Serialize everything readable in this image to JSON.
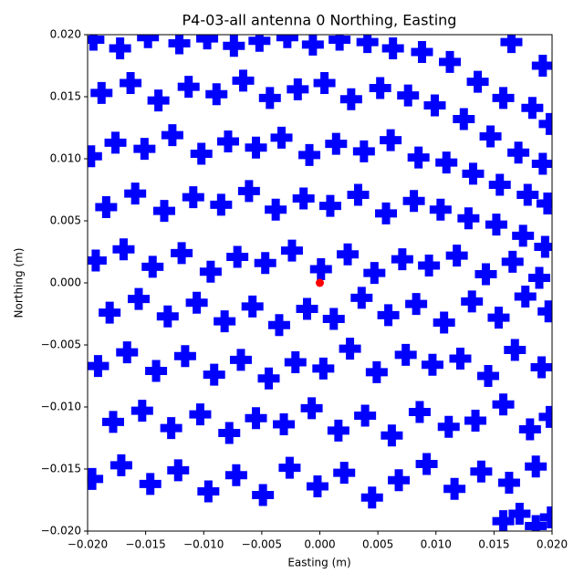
{
  "chart_data": {
    "type": "scatter",
    "title": "P4-03-all antenna 0 Northing, Easting",
    "x_label": "Easting (m)",
    "y_label": "Northing (m)",
    "xlim": [
      -0.02,
      0.02
    ],
    "ylim": [
      -0.02,
      0.02
    ],
    "xticks": [
      {
        "value": -0.02,
        "label": "−0.020"
      },
      {
        "value": -0.015,
        "label": "−0.015"
      },
      {
        "value": -0.01,
        "label": "−0.010"
      },
      {
        "value": -0.005,
        "label": "−0.005"
      },
      {
        "value": 0,
        "label": "0.000"
      },
      {
        "value": 0.005,
        "label": "0.005"
      },
      {
        "value": 0.01,
        "label": "0.010"
      },
      {
        "value": 0.015,
        "label": "0.015"
      },
      {
        "value": 0.02,
        "label": "0.020"
      }
    ],
    "yticks": [
      {
        "value": -0.02,
        "label": "−0.020"
      },
      {
        "value": -0.015,
        "label": "−0.015"
      },
      {
        "value": -0.01,
        "label": "−0.010"
      },
      {
        "value": -0.005,
        "label": "−0.005"
      },
      {
        "value": 0,
        "label": "0.000"
      },
      {
        "value": 0.005,
        "label": "0.005"
      },
      {
        "value": 0.01,
        "label": "0.010"
      },
      {
        "value": 0.015,
        "label": "0.015"
      },
      {
        "value": 0.02,
        "label": "0.020"
      }
    ],
    "series": [
      {
        "color": "#0000ff",
        "marker": "plus",
        "x": [
          -0.0195,
          -0.0172,
          -0.0148,
          -0.0121,
          -0.0097,
          -0.0074,
          -0.0052,
          -0.0028,
          -0.0006,
          0.0017,
          0.0041,
          0.0063,
          0.0088,
          0.0112,
          0.0136,
          0.0158,
          0.0183,
          0.0198,
          -0.0188,
          -0.0163,
          -0.0139,
          -0.0113,
          -0.0089,
          -0.0066,
          -0.0043,
          -0.0019,
          0.0004,
          0.0027,
          0.0052,
          0.0076,
          0.0099,
          0.0124,
          0.0147,
          0.0171,
          0.0192,
          -0.0197,
          -0.0176,
          -0.0151,
          -0.0127,
          -0.0102,
          -0.0079,
          -0.0055,
          -0.0033,
          -0.0009,
          0.0014,
          0.0038,
          0.0061,
          0.0085,
          0.0109,
          0.0132,
          0.0155,
          0.0179,
          0.0196,
          -0.0184,
          -0.0159,
          -0.0134,
          -0.0109,
          -0.0085,
          -0.0061,
          -0.0038,
          -0.0014,
          0.0009,
          0.0033,
          0.0057,
          0.0081,
          0.0104,
          0.0128,
          0.0152,
          0.0175,
          0.0194,
          -0.0193,
          -0.0169,
          -0.0144,
          -0.0119,
          -0.0094,
          -0.0071,
          -0.0047,
          -0.0024,
          0.0001,
          0.0024,
          0.0047,
          0.0071,
          0.0094,
          0.0118,
          0.0143,
          0.0166,
          0.0189,
          -0.0181,
          -0.0156,
          -0.0131,
          -0.0106,
          -0.0082,
          -0.0058,
          -0.0035,
          -0.0011,
          0.0012,
          0.0036,
          0.0059,
          0.0083,
          0.0107,
          0.0131,
          0.0154,
          0.0177,
          0.0197,
          -0.0191,
          -0.0166,
          -0.0141,
          -0.0116,
          -0.0091,
          -0.0068,
          -0.0044,
          -0.0021,
          0.0003,
          0.0026,
          0.0049,
          0.0074,
          0.0097,
          0.0121,
          0.0145,
          0.0168,
          0.0191,
          -0.0178,
          -0.0153,
          -0.0128,
          -0.0103,
          -0.0078,
          -0.0055,
          -0.0031,
          -0.0007,
          0.0016,
          0.0039,
          0.0062,
          0.0086,
          0.0111,
          0.0134,
          0.0158,
          0.0181,
          0.0198,
          -0.0196,
          -0.0171,
          -0.0146,
          -0.0122,
          -0.0096,
          -0.0072,
          -0.0049,
          -0.0026,
          -0.0002,
          0.0021,
          0.0045,
          0.0068,
          0.0092,
          0.0116,
          0.0139,
          0.0163,
          0.0186,
          0.0158,
          0.0172,
          0.0186,
          0.0199,
          0.0165,
          0.0192
        ],
        "y": [
          0.0196,
          0.0189,
          0.0198,
          0.0193,
          0.0197,
          0.0191,
          0.0195,
          0.0198,
          0.0192,
          0.0196,
          0.0194,
          0.0189,
          0.0186,
          0.0178,
          0.0162,
          0.0149,
          0.0141,
          0.0128,
          0.0153,
          0.0161,
          0.0147,
          0.0158,
          0.0152,
          0.0163,
          0.0149,
          0.0156,
          0.0161,
          0.0148,
          0.0157,
          0.0151,
          0.0143,
          0.0132,
          0.0118,
          0.0105,
          0.0096,
          0.0102,
          0.0113,
          0.0108,
          0.0119,
          0.0104,
          0.0114,
          0.0109,
          0.0117,
          0.0103,
          0.0112,
          0.0106,
          0.0115,
          0.0101,
          0.0097,
          0.0088,
          0.0079,
          0.0071,
          0.0064,
          0.0061,
          0.0072,
          0.0058,
          0.0069,
          0.0063,
          0.0074,
          0.0059,
          0.0068,
          0.0062,
          0.0071,
          0.0056,
          0.0066,
          0.0059,
          0.0052,
          0.0047,
          0.0038,
          0.0029,
          0.0018,
          0.0027,
          0.0013,
          0.0024,
          0.0009,
          0.0021,
          0.0016,
          0.0026,
          0.0011,
          0.0023,
          0.0008,
          0.0019,
          0.0014,
          0.0022,
          0.0007,
          0.0017,
          0.0004,
          -0.0024,
          -0.0013,
          -0.0027,
          -0.0016,
          -0.0031,
          -0.0019,
          -0.0034,
          -0.0021,
          -0.0029,
          -0.0012,
          -0.0026,
          -0.0017,
          -0.0032,
          -0.0015,
          -0.0028,
          -0.0011,
          -0.0023,
          -0.0067,
          -0.0056,
          -0.0071,
          -0.0059,
          -0.0074,
          -0.0062,
          -0.0077,
          -0.0064,
          -0.0069,
          -0.0053,
          -0.0072,
          -0.0058,
          -0.0066,
          -0.0061,
          -0.0075,
          -0.0054,
          -0.0068,
          -0.0112,
          -0.0103,
          -0.0117,
          -0.0106,
          -0.0121,
          -0.0109,
          -0.0114,
          -0.0101,
          -0.0119,
          -0.0107,
          -0.0123,
          -0.0104,
          -0.0116,
          -0.0111,
          -0.0098,
          -0.0118,
          -0.0108,
          -0.0158,
          -0.0147,
          -0.0162,
          -0.0151,
          -0.0168,
          -0.0155,
          -0.0171,
          -0.0149,
          -0.0164,
          -0.0153,
          -0.0173,
          -0.0159,
          -0.0146,
          -0.0166,
          -0.0152,
          -0.0161,
          -0.0148,
          -0.0192,
          -0.0186,
          -0.0196,
          -0.0189,
          0.0194,
          0.0175
        ]
      },
      {
        "color": "#ff0000",
        "marker": "circle",
        "x": [
          0
        ],
        "y": [
          0
        ]
      }
    ]
  }
}
